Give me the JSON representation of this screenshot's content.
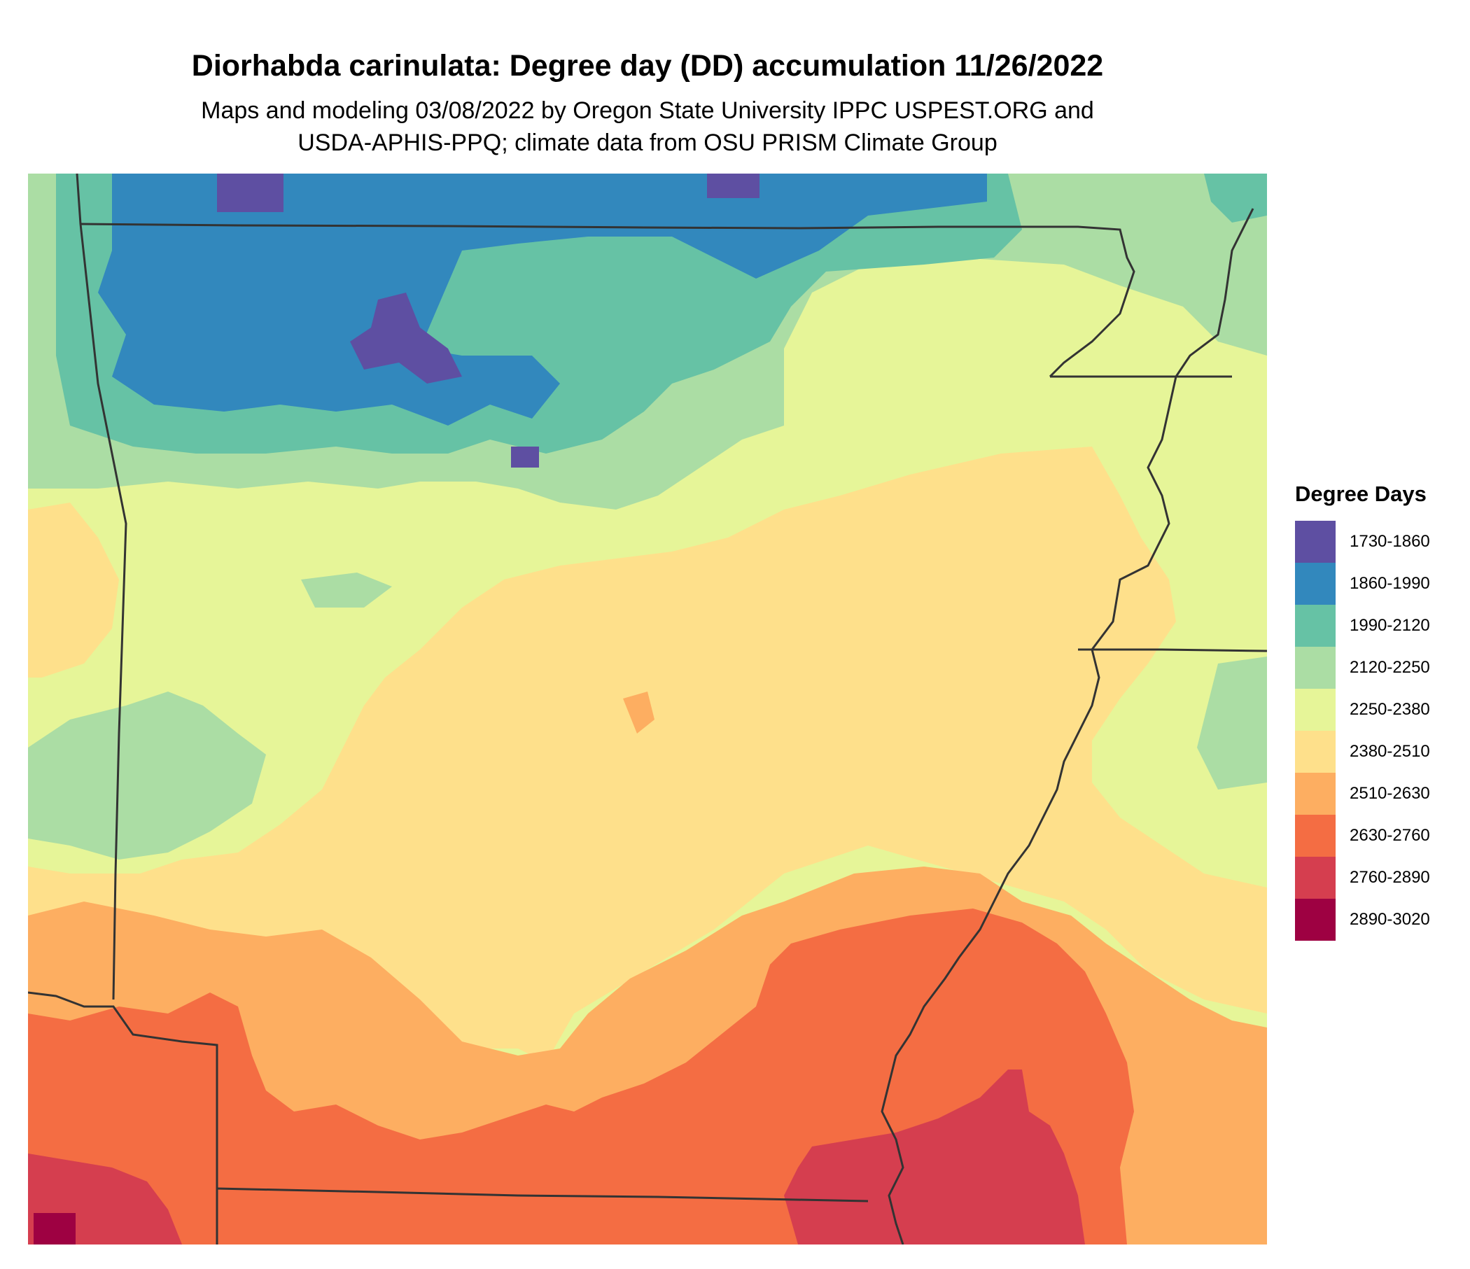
{
  "title": "Diorhabda carinulata: Degree day (DD) accumulation 11/26/2022",
  "subtitle_line1": "Maps and modeling 03/08/2022 by Oregon State University IPPC USPEST.ORG and",
  "subtitle_line2": "USDA-APHIS-PPQ; climate data from OSU PRISM Climate Group",
  "legend": {
    "title": "Degree Days",
    "items": [
      {
        "label": "1730-1860",
        "color": "#5E4FA2"
      },
      {
        "label": "1860-1990",
        "color": "#3288BD"
      },
      {
        "label": "1990-2120",
        "color": "#66C2A5"
      },
      {
        "label": "2120-2250",
        "color": "#ABDDA4"
      },
      {
        "label": "2250-2380",
        "color": "#E6F598"
      },
      {
        "label": "2380-2510",
        "color": "#FEE08B"
      },
      {
        "label": "2510-2630",
        "color": "#FDAE61"
      },
      {
        "label": "2630-2760",
        "color": "#F46D43"
      },
      {
        "label": "2760-2890",
        "color": "#D53E4F"
      },
      {
        "label": "2890-3020",
        "color": "#9E0142"
      }
    ]
  },
  "colors": {
    "border": "#333333"
  }
}
